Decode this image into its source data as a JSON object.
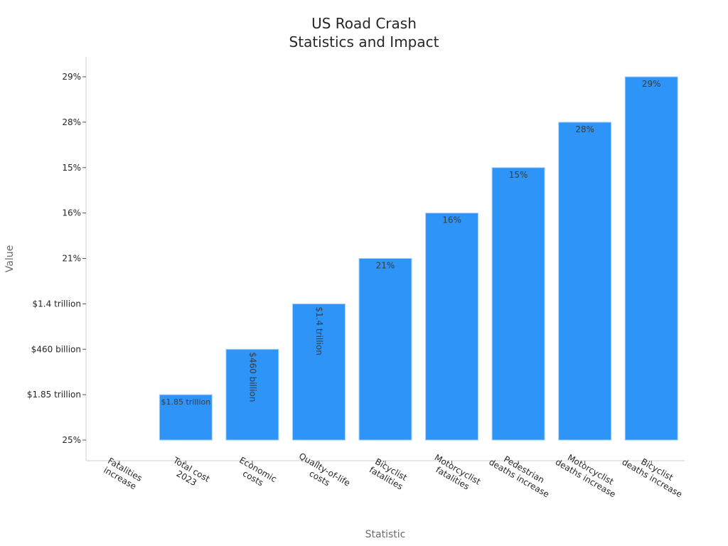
{
  "chart_data": {
    "type": "bar",
    "title": [
      "US Road Crash",
      "Statistics and Impact"
    ],
    "xlabel": "Statistic",
    "ylabel": "Value",
    "categories": [
      [
        "Fatalities",
        "increase"
      ],
      [
        "Total cost",
        "2023"
      ],
      [
        "Economic",
        "costs"
      ],
      [
        "Quality-of-life",
        "costs"
      ],
      [
        "Bicyclist",
        "fatalities"
      ],
      [
        "Motorcyclist",
        "fatalities"
      ],
      [
        "Pedestrian",
        "deaths increase"
      ],
      [
        "Motorcyclist",
        "deaths increase"
      ],
      [
        "Bicyclist",
        "deaths increase"
      ]
    ],
    "values": [
      "25%",
      "$1.85 trillion",
      "$460 billion",
      "$1.4 trillion",
      "21%",
      "16%",
      "15%",
      "28%",
      "29%"
    ],
    "y_ticks": [
      "25%",
      "$1.85 trillion",
      "$460 billion",
      "$1.4 trillion",
      "21%",
      "16%",
      "15%",
      "28%",
      "29%"
    ],
    "value_index": [
      0,
      1,
      2,
      3,
      4,
      5,
      6,
      7,
      8
    ],
    "label_orientation": [
      "none",
      "horizontal",
      "vertical",
      "vertical",
      "horizontal",
      "horizontal",
      "horizontal",
      "horizontal",
      "horizontal"
    ],
    "bar_color": "#2f94f8",
    "grid": false,
    "legend": "none"
  }
}
